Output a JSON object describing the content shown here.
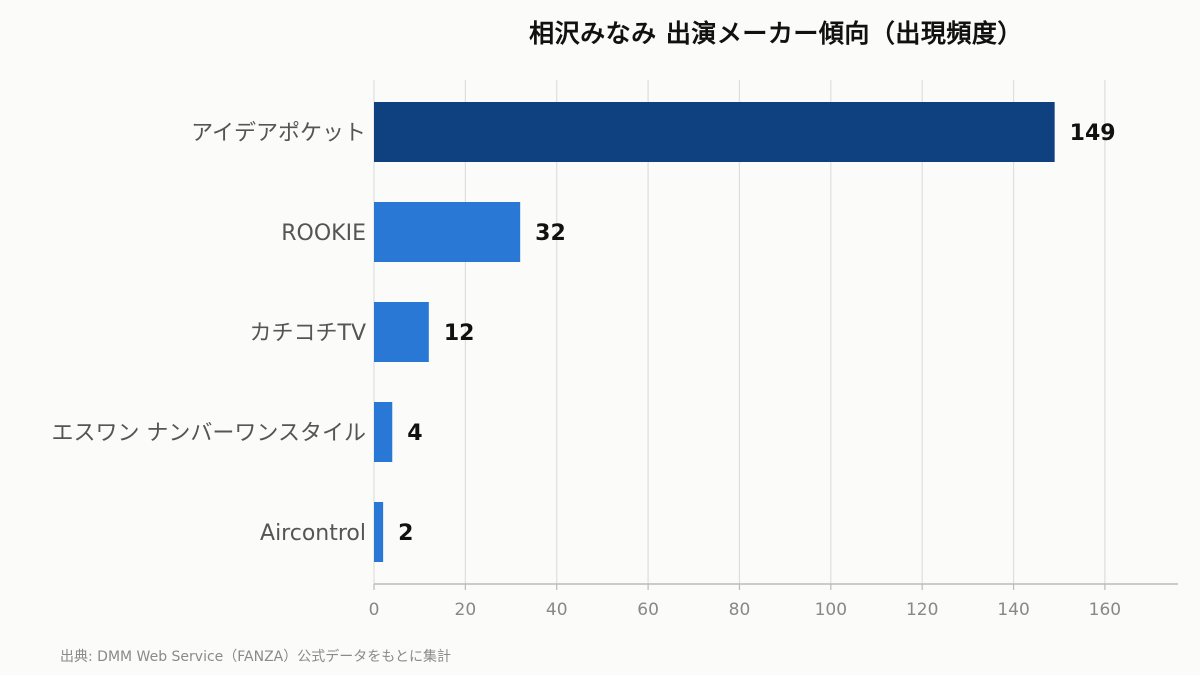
{
  "chart_data": {
    "type": "bar",
    "orientation": "horizontal",
    "title": "相沢みなみ 出演メーカー傾向（出現頻度）",
    "categories": [
      "アイデアポケット",
      "ROOKIE",
      "カチコチTV",
      "エスワン ナンバーワンスタイル",
      "Aircontrol"
    ],
    "values": [
      149,
      32,
      12,
      4,
      2
    ],
    "xlim": [
      0,
      176
    ],
    "xticks": [
      0,
      20,
      40,
      60,
      80,
      100,
      120,
      140,
      160
    ],
    "grid": true,
    "colors": {
      "highlight": "#0f4180",
      "bar": "#2a78d6",
      "grid": "#dedede",
      "axis": "#bbbbbb"
    }
  },
  "source_note": "出典: DMM Web Service（FANZA）公式データをもとに集計"
}
